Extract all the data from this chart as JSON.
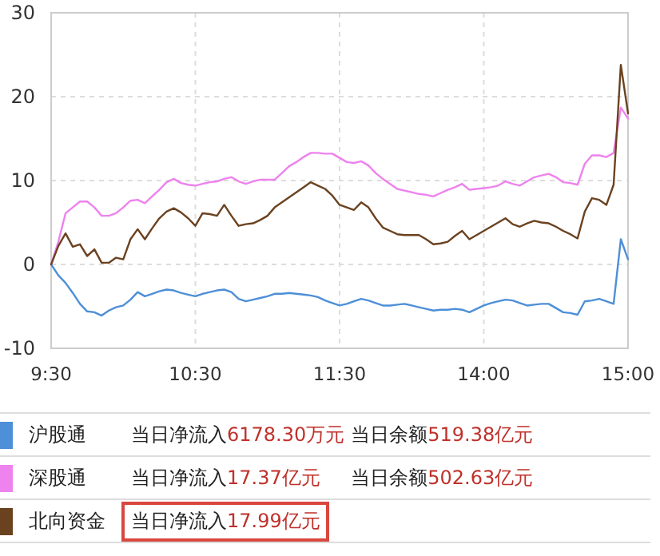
{
  "chart_data": {
    "type": "line",
    "categories": [
      "9:30",
      null,
      null,
      null,
      null,
      null,
      null,
      null,
      null,
      null,
      null,
      null,
      null,
      null,
      null,
      null,
      null,
      null,
      null,
      null,
      "10:30",
      null,
      null,
      null,
      null,
      null,
      null,
      null,
      null,
      null,
      null,
      null,
      null,
      null,
      null,
      null,
      null,
      null,
      null,
      null,
      "11:30",
      null,
      null,
      null,
      null,
      null,
      null,
      null,
      null,
      null,
      null,
      null,
      null,
      null,
      null,
      null,
      null,
      null,
      null,
      null,
      "14:00",
      null,
      null,
      null,
      null,
      null,
      null,
      null,
      null,
      null,
      null,
      null,
      null,
      null,
      null,
      null,
      null,
      null,
      null,
      null,
      "15:00"
    ],
    "ylim": [
      -10,
      30
    ],
    "yticks": [
      -10,
      0,
      10,
      20,
      30
    ],
    "grid": true,
    "legend": "bottom",
    "series": [
      {
        "name": "沪股通",
        "color": "#4d8fd8",
        "values": [
          0,
          -1.3,
          -2.2,
          -3.4,
          -4.7,
          -5.6,
          -5.7,
          -6.1,
          -5.5,
          -5.1,
          -4.9,
          -4.2,
          -3.3,
          -3.8,
          -3.5,
          -3.2,
          -3.0,
          -3.1,
          -3.4,
          -3.6,
          -3.8,
          -3.5,
          -3.3,
          -3.1,
          -3.0,
          -3.3,
          -4.1,
          -4.4,
          -4.2,
          -4.0,
          -3.8,
          -3.5,
          -3.5,
          -3.4,
          -3.5,
          -3.6,
          -3.7,
          -3.9,
          -4.3,
          -4.6,
          -4.9,
          -4.7,
          -4.4,
          -4.1,
          -4.3,
          -4.6,
          -4.9,
          -4.9,
          -4.8,
          -4.7,
          -4.9,
          -5.1,
          -5.3,
          -5.5,
          -5.4,
          -5.4,
          -5.3,
          -5.4,
          -5.7,
          -5.3,
          -4.9,
          -4.6,
          -4.4,
          -4.2,
          -4.3,
          -4.6,
          -4.9,
          -4.8,
          -4.7,
          -4.7,
          -5.2,
          -5.7,
          -5.8,
          -6.0,
          -4.4,
          -4.3,
          -4.1,
          -4.4,
          -4.7,
          3.0,
          0.6
        ]
      },
      {
        "name": "深股通",
        "color": "#ee82ee",
        "values": [
          0,
          2.7,
          6.1,
          6.8,
          7.5,
          7.5,
          6.8,
          5.8,
          5.8,
          6.1,
          6.8,
          7.6,
          7.7,
          7.3,
          8.1,
          8.9,
          9.8,
          10.2,
          9.7,
          9.5,
          9.4,
          9.6,
          9.8,
          9.9,
          10.2,
          10.4,
          9.9,
          9.6,
          9.9,
          10.1,
          10.1,
          10.1,
          10.9,
          11.7,
          12.2,
          12.8,
          13.3,
          13.3,
          13.2,
          13.2,
          12.7,
          12.2,
          12.1,
          12.3,
          11.8,
          10.9,
          10.2,
          9.6,
          9.0,
          8.8,
          8.6,
          8.4,
          8.3,
          8.1,
          8.5,
          8.9,
          9.2,
          9.6,
          8.9,
          9.0,
          9.1,
          9.2,
          9.4,
          9.9,
          9.6,
          9.4,
          9.9,
          10.4,
          10.6,
          10.8,
          10.4,
          9.8,
          9.7,
          9.5,
          12.0,
          13.0,
          13.0,
          12.8,
          13.3,
          18.7,
          17.4
        ]
      },
      {
        "name": "北向资金",
        "color": "#6b4220",
        "values": [
          0,
          2.2,
          3.7,
          2.1,
          2.4,
          1.0,
          1.8,
          0.2,
          0.2,
          0.8,
          0.6,
          3.0,
          4.2,
          3.0,
          4.3,
          5.5,
          6.3,
          6.7,
          6.2,
          5.5,
          4.6,
          6.1,
          6.0,
          5.8,
          7.1,
          5.8,
          4.6,
          4.8,
          4.9,
          5.3,
          5.8,
          6.8,
          7.4,
          8.0,
          8.6,
          9.2,
          9.8,
          9.4,
          9.0,
          8.2,
          7.1,
          6.8,
          6.5,
          7.4,
          6.8,
          5.5,
          4.4,
          4.0,
          3.6,
          3.5,
          3.5,
          3.5,
          3.0,
          2.4,
          2.5,
          2.7,
          3.4,
          4.0,
          3.0,
          3.5,
          4.0,
          4.5,
          5.0,
          5.5,
          4.8,
          4.5,
          4.9,
          5.2,
          5.0,
          4.9,
          4.5,
          4.0,
          3.6,
          3.1,
          6.3,
          7.9,
          7.7,
          7.1,
          9.5,
          23.8,
          18.0
        ]
      }
    ],
    "annotations": [
      "当日净流入6178.30万元",
      "当日余额519.38亿元",
      "当日净流入17.37亿元",
      "当日余额502.63亿元",
      "当日净流入17.99亿元"
    ]
  }
}
